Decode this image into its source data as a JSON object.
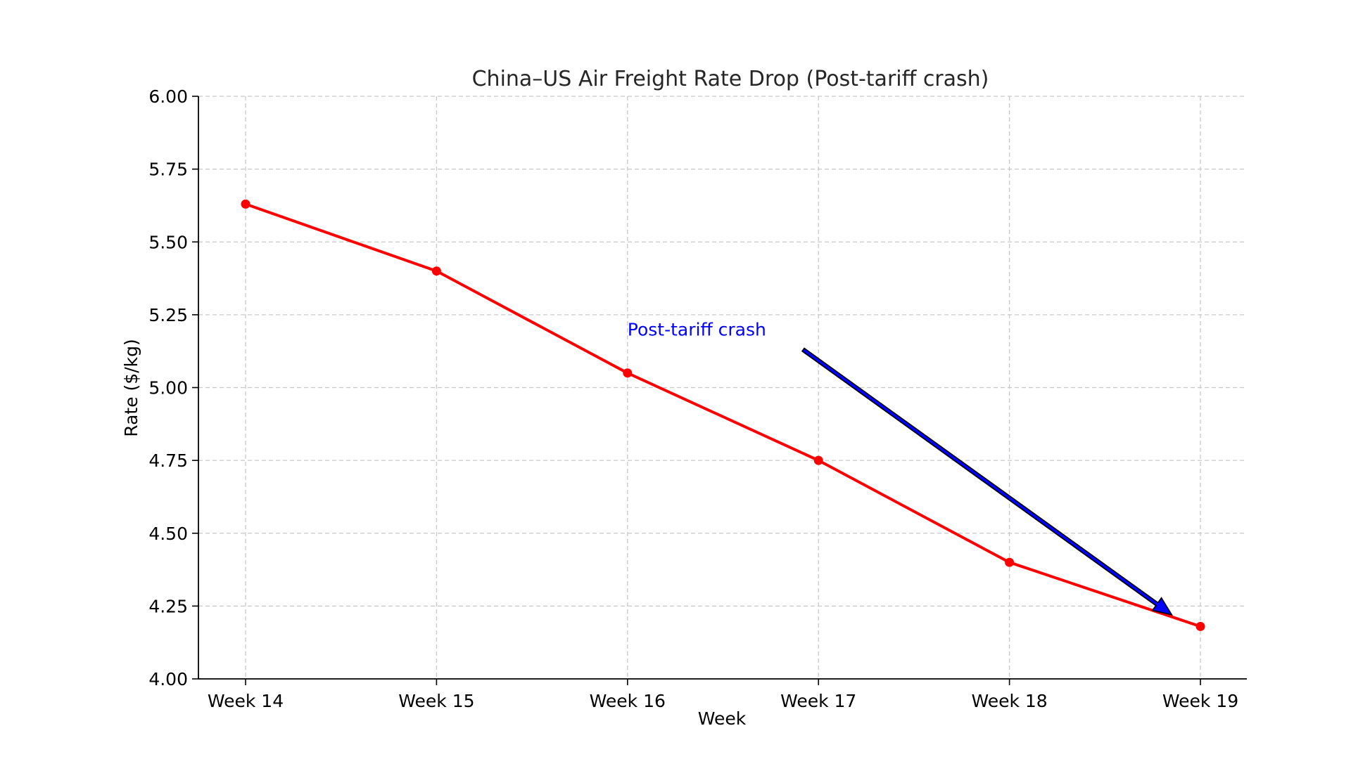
{
  "chart_data": {
    "type": "line",
    "title": "China–US Air Freight Rate Drop (Post-tariff crash)",
    "xlabel": "Week",
    "ylabel": "Rate ($/kg)",
    "categories": [
      "Week 14",
      "Week 15",
      "Week 16",
      "Week 17",
      "Week 18",
      "Week 19"
    ],
    "series": [
      {
        "values": [
          5.63,
          5.4,
          5.05,
          4.75,
          4.4,
          4.18
        ],
        "color": "#ff0000",
        "marker": "circle"
      }
    ],
    "ylim": [
      4.0,
      6.0
    ],
    "yticks": [
      "4.00",
      "4.25",
      "4.50",
      "4.75",
      "5.00",
      "5.25",
      "5.50",
      "5.75",
      "6.00"
    ],
    "grid": true,
    "grid_style": "dashed",
    "annotation": {
      "text": "Post-tariff crash",
      "color": "#0000ff",
      "text_anchor_point": [
        "Week 16",
        5.2
      ],
      "arrow_from": [
        16.92,
        5.13
      ],
      "arrow_to": [
        18.85,
        4.22
      ],
      "arrow_color": "#0000ff",
      "arrow_edge_color": "#000000"
    }
  }
}
